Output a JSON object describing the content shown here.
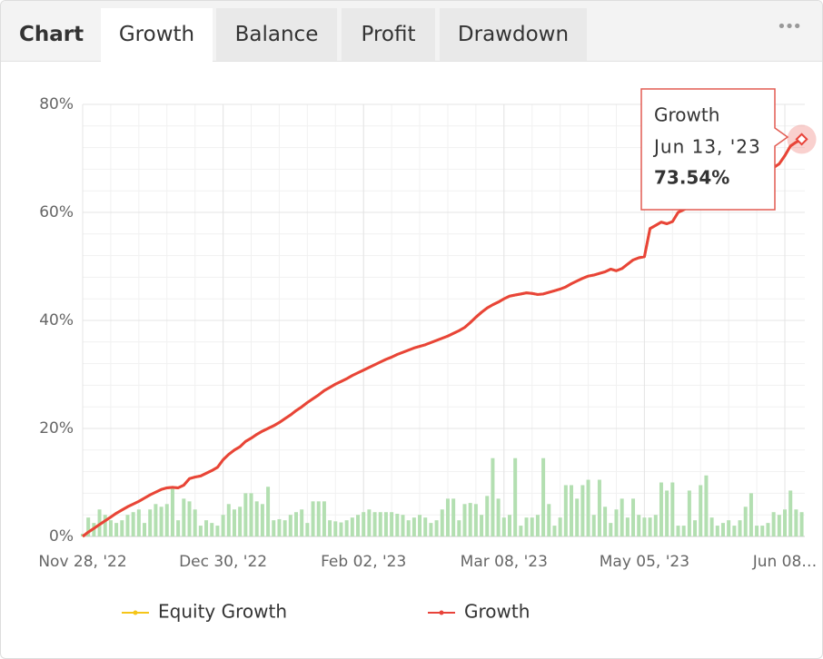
{
  "header": {
    "title": "Chart",
    "tabs": [
      "Growth",
      "Balance",
      "Profit",
      "Drawdown"
    ],
    "menu": "•••"
  },
  "chart_data": {
    "type": "line",
    "categories": [
      "Nov 28, '22",
      null,
      null,
      null,
      null,
      null,
      null,
      null,
      null,
      null,
      null,
      null,
      null,
      null,
      null,
      null,
      null,
      null,
      null,
      null,
      null,
      null,
      null,
      null,
      null,
      "Dec 30, '22",
      null,
      null,
      null,
      null,
      null,
      null,
      null,
      null,
      null,
      null,
      null,
      null,
      null,
      null,
      null,
      null,
      null,
      null,
      null,
      null,
      null,
      null,
      null,
      null,
      "Feb 02, '23",
      null,
      null,
      null,
      null,
      null,
      null,
      null,
      null,
      null,
      null,
      null,
      null,
      null,
      null,
      null,
      null,
      null,
      null,
      null,
      null,
      null,
      null,
      null,
      null,
      "Mar 08, '23",
      null,
      null,
      null,
      null,
      null,
      null,
      null,
      null,
      null,
      null,
      null,
      null,
      null,
      null,
      null,
      null,
      null,
      null,
      null,
      null,
      null,
      null,
      null,
      null,
      "May 05, '23",
      null,
      null,
      null,
      null,
      null,
      null,
      null,
      null,
      null,
      null,
      null,
      null,
      null,
      null,
      null,
      null,
      null,
      null,
      null,
      null,
      null,
      null,
      null,
      null,
      "Jun 08…",
      null,
      null,
      null
    ],
    "series": [
      {
        "name": "Equity Growth",
        "color": "#f5c518",
        "values": [
          0,
          0.8,
          1.5,
          2.2,
          2.9,
          3.6,
          4.3,
          4.9,
          5.5,
          6,
          6.5,
          7.1,
          7.7,
          8.2,
          8.7,
          9.0,
          9.1,
          9.0,
          9.5,
          10.7,
          11.0,
          11.2,
          11.7,
          12.2,
          12.8,
          14.2,
          15.2,
          16.0,
          16.6,
          17.6,
          18.2,
          18.9,
          19.5,
          20.0,
          20.5,
          21.1,
          21.8,
          22.5,
          23.3,
          24.0,
          24.8,
          25.5,
          26.2,
          27.0,
          27.6,
          28.2,
          28.7,
          29.2,
          29.8,
          30.3,
          30.8,
          31.3,
          31.8,
          32.3,
          32.8,
          33.2,
          33.7,
          34.1,
          34.5,
          34.9,
          35.2,
          35.5,
          35.9,
          36.3,
          36.7,
          37.1,
          37.6,
          38.1,
          38.7,
          39.6,
          40.6,
          41.5,
          42.3,
          42.9,
          43.4,
          44.0,
          44.5,
          44.7,
          44.9,
          45.1,
          45.0,
          44.8,
          44.9,
          45.2,
          45.5,
          45.8,
          46.2,
          46.8,
          47.3,
          47.8,
          48.2,
          48.4,
          48.7,
          49.0,
          49.5,
          49.2,
          49.6,
          50.4,
          51.2,
          51.6,
          51.8,
          57.0,
          57.6,
          58.2,
          57.9,
          58.3,
          60.0,
          60.5,
          61.0,
          61.5,
          62.0,
          62.6,
          63.0,
          63.5,
          64.0,
          64.5,
          65.0,
          65.4,
          65.8,
          66.3,
          66.8,
          67.3,
          67.8,
          68.3,
          69.0,
          70.5,
          72.3,
          73.0,
          73.54
        ]
      },
      {
        "name": "Growth",
        "color": "#e8433a",
        "values": [
          0,
          0.8,
          1.5,
          2.2,
          2.9,
          3.6,
          4.3,
          4.9,
          5.5,
          6,
          6.5,
          7.1,
          7.7,
          8.2,
          8.7,
          9.0,
          9.1,
          9.0,
          9.5,
          10.7,
          11.0,
          11.2,
          11.7,
          12.2,
          12.8,
          14.2,
          15.2,
          16.0,
          16.6,
          17.6,
          18.2,
          18.9,
          19.5,
          20.0,
          20.5,
          21.1,
          21.8,
          22.5,
          23.3,
          24.0,
          24.8,
          25.5,
          26.2,
          27.0,
          27.6,
          28.2,
          28.7,
          29.2,
          29.8,
          30.3,
          30.8,
          31.3,
          31.8,
          32.3,
          32.8,
          33.2,
          33.7,
          34.1,
          34.5,
          34.9,
          35.2,
          35.5,
          35.9,
          36.3,
          36.7,
          37.1,
          37.6,
          38.1,
          38.7,
          39.6,
          40.6,
          41.5,
          42.3,
          42.9,
          43.4,
          44.0,
          44.5,
          44.7,
          44.9,
          45.1,
          45.0,
          44.8,
          44.9,
          45.2,
          45.5,
          45.8,
          46.2,
          46.8,
          47.3,
          47.8,
          48.2,
          48.4,
          48.7,
          49.0,
          49.5,
          49.2,
          49.6,
          50.4,
          51.2,
          51.6,
          51.8,
          57.0,
          57.6,
          58.2,
          57.9,
          58.3,
          60.0,
          60.5,
          61.0,
          61.5,
          62.0,
          62.6,
          63.0,
          63.5,
          64.0,
          64.5,
          65.0,
          65.4,
          65.8,
          66.3,
          66.8,
          67.3,
          67.8,
          68.3,
          69.0,
          70.5,
          72.3,
          73.0,
          73.54
        ]
      }
    ],
    "bar_color": "#b3dfb1",
    "bar_values": [
      0.5,
      3.5,
      2.5,
      5,
      4,
      3,
      2.5,
      3,
      4,
      4.5,
      5,
      2.5,
      5,
      6,
      5.5,
      6,
      9,
      3,
      7,
      6.5,
      5,
      2,
      3,
      2.5,
      2,
      4,
      6,
      5,
      5.5,
      8,
      8,
      6.5,
      6,
      9.2,
      3,
      3.2,
      3,
      4,
      4.5,
      5,
      2.5,
      6.5,
      6.5,
      6.5,
      3,
      2.8,
      2.6,
      3,
      3.5,
      4,
      4.5,
      5,
      4.5,
      4.5,
      4.5,
      4.5,
      4.2,
      4,
      3,
      3.5,
      4,
      3.5,
      2.5,
      3,
      5,
      7,
      7,
      3,
      6,
      6.2,
      6,
      4,
      7.5,
      14.5,
      7,
      3.5,
      4,
      14.5,
      2,
      3.5,
      3.5,
      4,
      14.5,
      6,
      2,
      3.5,
      9.5,
      9.5,
      7,
      9.5,
      10.5,
      4,
      10.5,
      5.5,
      2.5,
      5,
      7,
      3.5,
      7,
      4,
      3.5,
      3.5,
      4,
      10,
      8.5,
      10,
      2,
      2,
      8.5,
      3,
      9.5,
      11.3,
      3.5,
      2,
      2.5,
      3,
      2,
      3,
      5.5,
      8,
      2,
      2,
      2.5,
      4.5,
      4,
      5,
      8.5,
      5,
      4.5
    ],
    "ylim": [
      0,
      80
    ],
    "yticks": [
      {
        "value": 0,
        "label": "0%"
      },
      {
        "value": 20,
        "label": "20%"
      },
      {
        "value": 40,
        "label": "40%"
      },
      {
        "value": 60,
        "label": "60%"
      },
      {
        "value": 80,
        "label": "80%"
      }
    ],
    "grid": true,
    "legend": "bottom",
    "tooltip": {
      "date": "Jun 13, '23",
      "value_label": "73.54%"
    }
  }
}
